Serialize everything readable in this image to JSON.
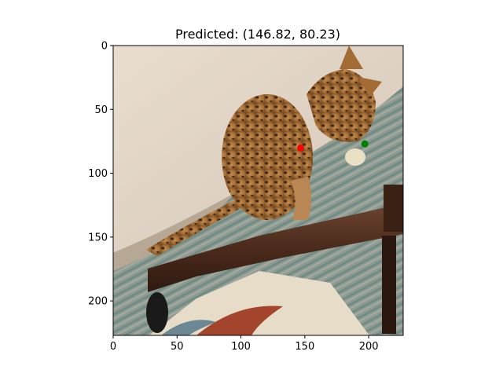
{
  "chart_data": {
    "type": "scatter",
    "title": "Predicted: (146.82, 80.23)",
    "xlabel": "",
    "ylabel": "",
    "xlim": [
      0,
      227
    ],
    "ylim": [
      227,
      0
    ],
    "y_axis_inverted": true,
    "grid": false,
    "legend": "none",
    "x_ticks": [
      0,
      50,
      100,
      150,
      200
    ],
    "y_ticks": [
      0,
      50,
      100,
      150,
      200
    ],
    "background": "image of a spotted kitten on a striped rug beside a brown wooden frame",
    "points": [
      {
        "x": 146.82,
        "y": 80.23,
        "color": "#ff0000"
      },
      {
        "x": 197,
        "y": 77,
        "color": "#008000"
      }
    ]
  }
}
